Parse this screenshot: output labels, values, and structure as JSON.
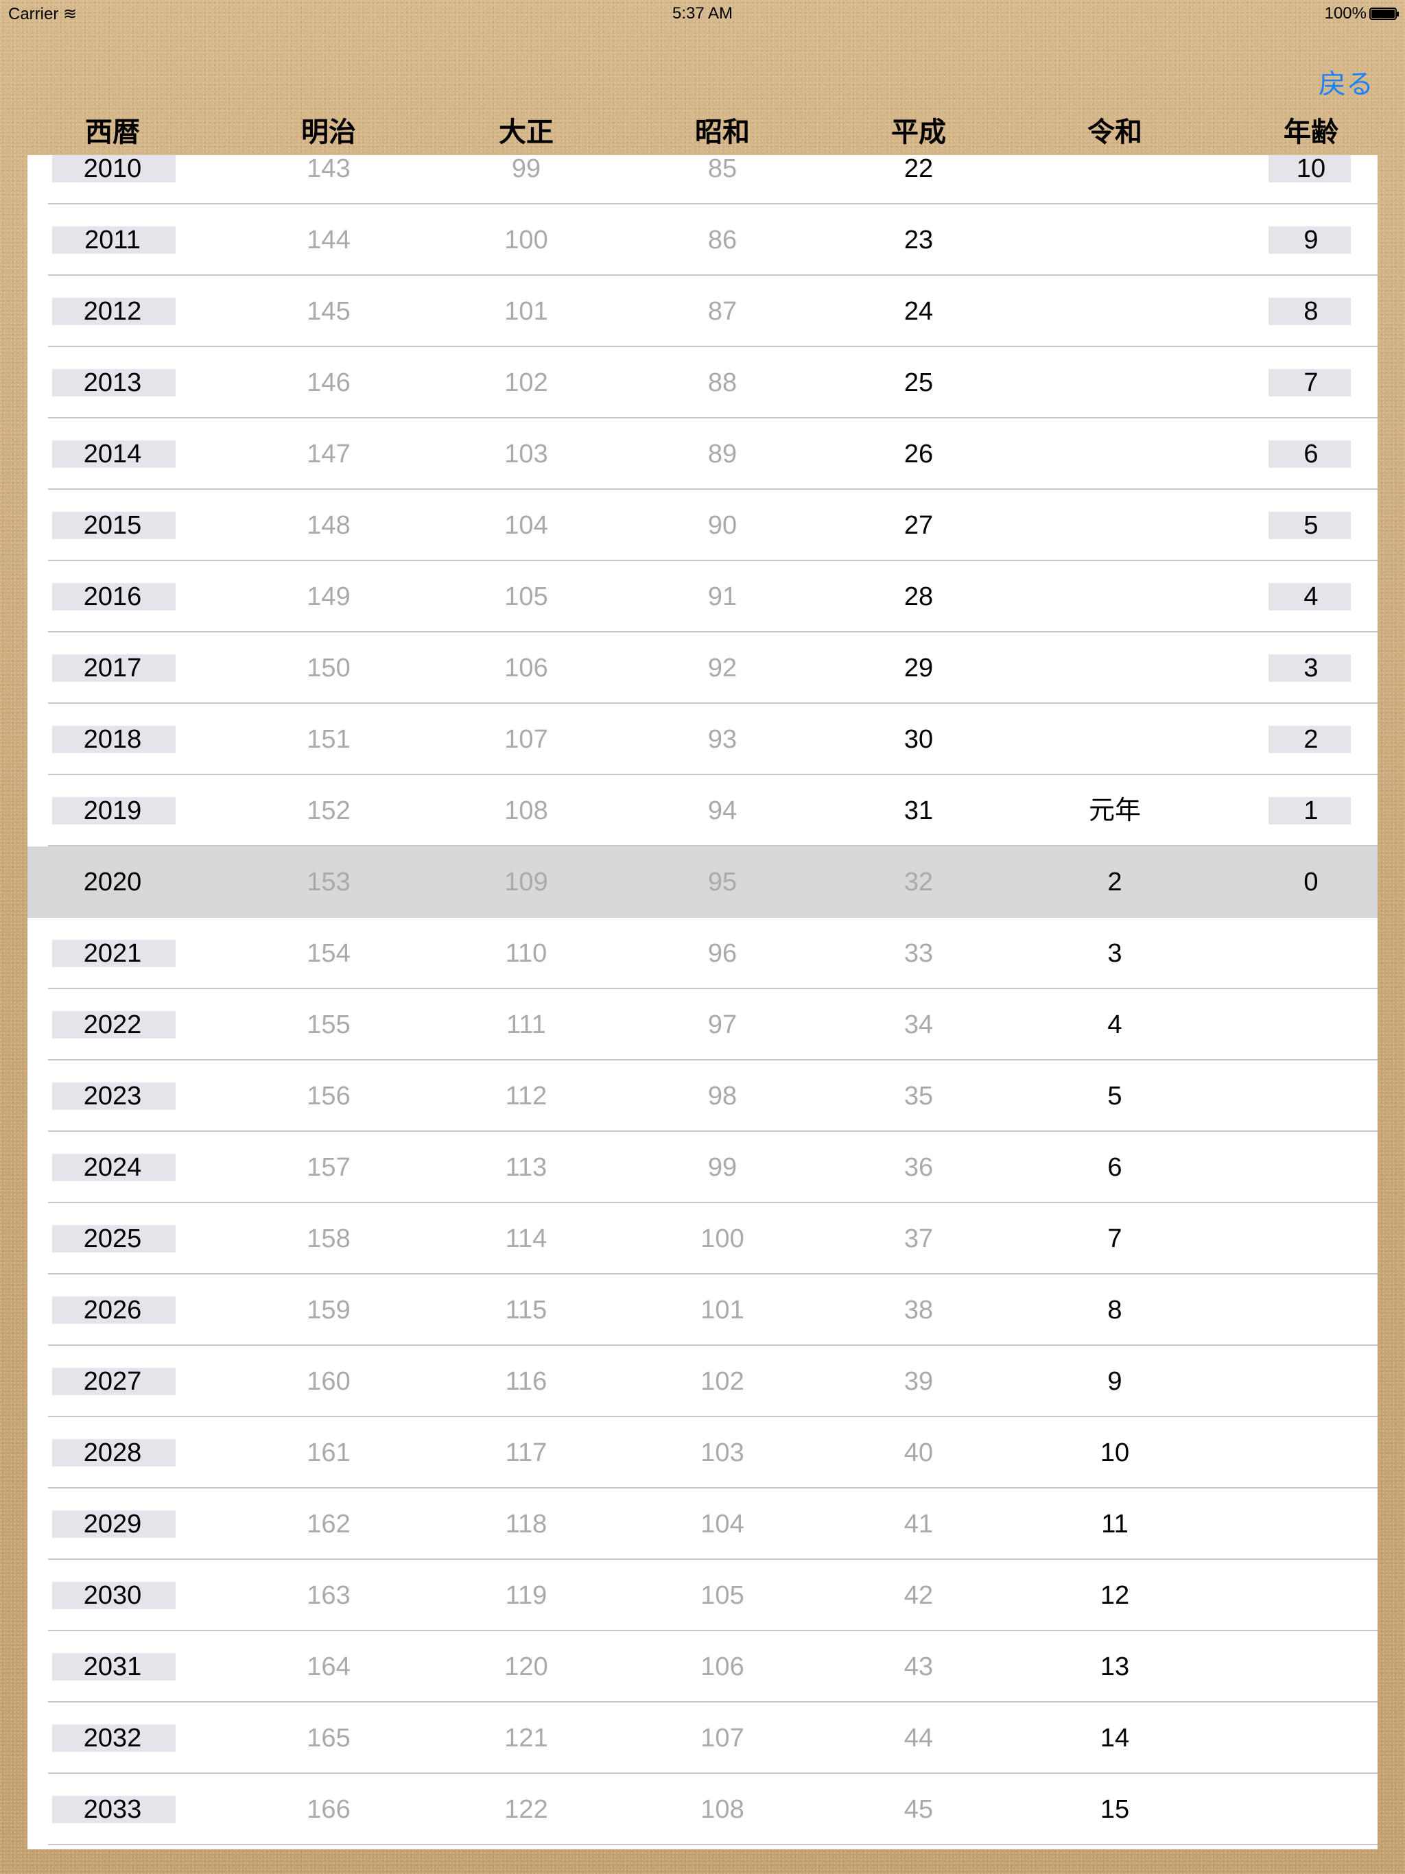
{
  "status_bar": {
    "carrier": "Carrier",
    "time": "5:37 AM",
    "battery": "100%"
  },
  "nav": {
    "back_label": "戻る",
    "accent_color": "#1a82fb"
  },
  "headers": [
    "西暦",
    "明治",
    "大正",
    "昭和",
    "平成",
    "令和",
    "年齢"
  ],
  "selected_year": "2020",
  "rows": [
    {
      "year": "2010",
      "meiji": "143",
      "taisho": "99",
      "showa": "85",
      "heisei": "22",
      "reiwa": "",
      "age": "10"
    },
    {
      "year": "2011",
      "meiji": "144",
      "taisho": "100",
      "showa": "86",
      "heisei": "23",
      "reiwa": "",
      "age": "9"
    },
    {
      "year": "2012",
      "meiji": "145",
      "taisho": "101",
      "showa": "87",
      "heisei": "24",
      "reiwa": "",
      "age": "8"
    },
    {
      "year": "2013",
      "meiji": "146",
      "taisho": "102",
      "showa": "88",
      "heisei": "25",
      "reiwa": "",
      "age": "7"
    },
    {
      "year": "2014",
      "meiji": "147",
      "taisho": "103",
      "showa": "89",
      "heisei": "26",
      "reiwa": "",
      "age": "6"
    },
    {
      "year": "2015",
      "meiji": "148",
      "taisho": "104",
      "showa": "90",
      "heisei": "27",
      "reiwa": "",
      "age": "5"
    },
    {
      "year": "2016",
      "meiji": "149",
      "taisho": "105",
      "showa": "91",
      "heisei": "28",
      "reiwa": "",
      "age": "4"
    },
    {
      "year": "2017",
      "meiji": "150",
      "taisho": "106",
      "showa": "92",
      "heisei": "29",
      "reiwa": "",
      "age": "3"
    },
    {
      "year": "2018",
      "meiji": "151",
      "taisho": "107",
      "showa": "93",
      "heisei": "30",
      "reiwa": "",
      "age": "2"
    },
    {
      "year": "2019",
      "meiji": "152",
      "taisho": "108",
      "showa": "94",
      "heisei": "31",
      "reiwa": "元年",
      "age": "1"
    },
    {
      "year": "2020",
      "meiji": "153",
      "taisho": "109",
      "showa": "95",
      "heisei": "32",
      "reiwa": "2",
      "age": "0"
    },
    {
      "year": "2021",
      "meiji": "154",
      "taisho": "110",
      "showa": "96",
      "heisei": "33",
      "reiwa": "3",
      "age": ""
    },
    {
      "year": "2022",
      "meiji": "155",
      "taisho": "111",
      "showa": "97",
      "heisei": "34",
      "reiwa": "4",
      "age": ""
    },
    {
      "year": "2023",
      "meiji": "156",
      "taisho": "112",
      "showa": "98",
      "heisei": "35",
      "reiwa": "5",
      "age": ""
    },
    {
      "year": "2024",
      "meiji": "157",
      "taisho": "113",
      "showa": "99",
      "heisei": "36",
      "reiwa": "6",
      "age": ""
    },
    {
      "year": "2025",
      "meiji": "158",
      "taisho": "114",
      "showa": "100",
      "heisei": "37",
      "reiwa": "7",
      "age": ""
    },
    {
      "year": "2026",
      "meiji": "159",
      "taisho": "115",
      "showa": "101",
      "heisei": "38",
      "reiwa": "8",
      "age": ""
    },
    {
      "year": "2027",
      "meiji": "160",
      "taisho": "116",
      "showa": "102",
      "heisei": "39",
      "reiwa": "9",
      "age": ""
    },
    {
      "year": "2028",
      "meiji": "161",
      "taisho": "117",
      "showa": "103",
      "heisei": "40",
      "reiwa": "10",
      "age": ""
    },
    {
      "year": "2029",
      "meiji": "162",
      "taisho": "118",
      "showa": "104",
      "heisei": "41",
      "reiwa": "11",
      "age": ""
    },
    {
      "year": "2030",
      "meiji": "163",
      "taisho": "119",
      "showa": "105",
      "heisei": "42",
      "reiwa": "12",
      "age": ""
    },
    {
      "year": "2031",
      "meiji": "164",
      "taisho": "120",
      "showa": "106",
      "heisei": "43",
      "reiwa": "13",
      "age": ""
    },
    {
      "year": "2032",
      "meiji": "165",
      "taisho": "121",
      "showa": "107",
      "heisei": "44",
      "reiwa": "14",
      "age": ""
    },
    {
      "year": "2033",
      "meiji": "166",
      "taisho": "122",
      "showa": "108",
      "heisei": "45",
      "reiwa": "15",
      "age": ""
    }
  ]
}
